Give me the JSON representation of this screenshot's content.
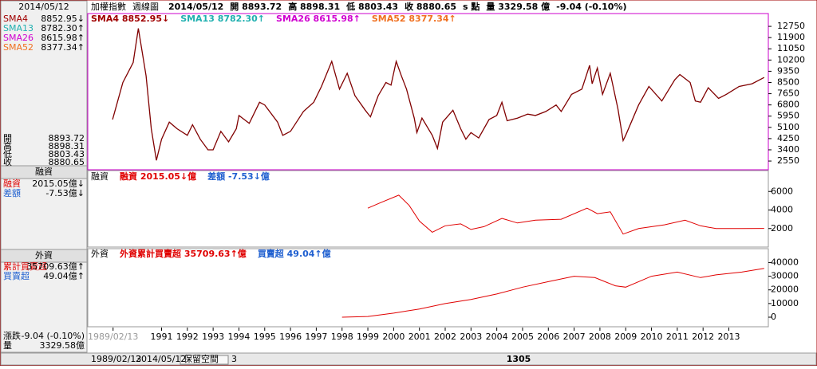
{
  "header": {
    "items": [
      "加權指數",
      "週線圖",
      "2014/05/12",
      "開 8893.72",
      "高 8898.31",
      "低 8803.43",
      "收 8880.65",
      "s 點",
      "量 3329.58 億",
      "-9.04 (-0.10%)"
    ]
  },
  "sidebar": {
    "date": "2014/05/12",
    "sma": [
      {
        "label": "SMA4",
        "value": "8852.95↓",
        "color": "#a00000"
      },
      {
        "label": "SMA13",
        "value": "8782.30↑",
        "color": "#20b0b0"
      },
      {
        "label": "SMA26",
        "value": "8615.98↑",
        "color": "#d000d0"
      },
      {
        "label": "SMA52",
        "value": "8377.34↑",
        "color": "#f07020"
      }
    ],
    "ohlc": [
      {
        "label": "開",
        "value": "8893.72"
      },
      {
        "label": "高",
        "value": "8898.31"
      },
      {
        "label": "低",
        "value": "8803.43"
      },
      {
        "label": "收",
        "value": "8880.65"
      }
    ],
    "margin_title": "融資",
    "margin": [
      {
        "label": "融資",
        "value": "2015.05億↓"
      },
      {
        "label": "差額",
        "value": "-7.53億↓"
      }
    ],
    "foreign_title": "外資",
    "foreign": [
      {
        "label": "累計買賣超",
        "value": "35709.63億↑"
      },
      {
        "label": "買賣超",
        "value": "49.04億↑"
      }
    ],
    "footer": [
      {
        "label": "漲跌",
        "value": "-9.04 (-0.10%)"
      },
      {
        "label": "量",
        "value": "3329.58億"
      }
    ]
  },
  "toolbar": {
    "start": "1989/02/13",
    "end": "2014/05/12",
    "button": "保留空間",
    "count": "3",
    "bars": "1305"
  },
  "chart_data": [
    {
      "type": "line",
      "legend": [
        {
          "text": "SMA4 8852.95↓",
          "color": "#a00000"
        },
        {
          "text": "SMA13 8782.30↑",
          "color": "#20b0b0"
        },
        {
          "text": "SMA26 8615.98↑",
          "color": "#d000d0"
        },
        {
          "text": "SMA52 8377.34↑",
          "color": "#f07020"
        }
      ],
      "xlim": [
        1988.2,
        2014.5
      ],
      "ylim": [
        1950,
        13600
      ],
      "yticks": [
        12750,
        11900,
        11050,
        10200,
        9350,
        8500,
        7650,
        6800,
        5950,
        5100,
        4250,
        3400,
        2550
      ],
      "x": [
        1989.1,
        1989.5,
        1989.9,
        1990.1,
        1990.4,
        1990.6,
        1990.8,
        1991.0,
        1991.3,
        1991.6,
        1992.0,
        1992.2,
        1992.5,
        1992.8,
        1993.0,
        1993.3,
        1993.6,
        1993.9,
        1994.0,
        1994.4,
        1994.8,
        1995.0,
        1995.5,
        1995.7,
        1996.0,
        1996.5,
        1996.9,
        1997.2,
        1997.6,
        1997.9,
        1998.2,
        1998.5,
        1998.9,
        1999.1,
        1999.4,
        1999.7,
        1999.9,
        2000.1,
        2000.3,
        2000.5,
        2000.8,
        2000.9,
        2001.1,
        2001.5,
        2001.7,
        2001.9,
        2002.3,
        2002.6,
        2002.8,
        2003.0,
        2003.3,
        2003.7,
        2004.0,
        2004.2,
        2004.4,
        2004.8,
        2005.2,
        2005.5,
        2005.9,
        2006.3,
        2006.5,
        2006.9,
        2007.3,
        2007.6,
        2007.7,
        2007.9,
        2008.1,
        2008.4,
        2008.7,
        2008.9,
        2009.0,
        2009.5,
        2009.9,
        2010.4,
        2010.9,
        2011.1,
        2011.5,
        2011.7,
        2011.9,
        2012.2,
        2012.6,
        2012.9,
        2013.4,
        2013.9,
        2014.37
      ],
      "series": [
        {
          "color": "#800000",
          "values": [
            5700,
            8500,
            10000,
            12600,
            9000,
            5000,
            2600,
            4200,
            5500,
            5000,
            4500,
            5300,
            4200,
            3400,
            3400,
            4800,
            4000,
            5000,
            6000,
            5400,
            7000,
            6800,
            5500,
            4500,
            4800,
            6300,
            7000,
            8200,
            10100,
            8000,
            9200,
            7500,
            6400,
            5900,
            7500,
            8500,
            8300,
            10100,
            9000,
            8000,
            5800,
            4700,
            5800,
            4500,
            3500,
            5500,
            6400,
            5000,
            4200,
            4700,
            4300,
            5700,
            6000,
            7000,
            5600,
            5800,
            6100,
            6000,
            6300,
            6800,
            6300,
            7600,
            8000,
            9800,
            8400,
            9600,
            7600,
            9200,
            6500,
            4100,
            4500,
            6800,
            8200,
            7100,
            8700,
            9100,
            8500,
            7100,
            7000,
            8100,
            7300,
            7600,
            8200,
            8400,
            8880.65
          ]
        }
      ]
    },
    {
      "type": "line",
      "legend": [
        {
          "text": "融資",
          "color": "#000000"
        },
        {
          "text": "融資 2015.05↓億",
          "color": "#e00000"
        },
        {
          "text": "差額 -7.53↓億",
          "color": "#2060d0"
        }
      ],
      "xlim": [
        1988.2,
        2014.5
      ],
      "ylim": [
        0,
        8000
      ],
      "yticks": [
        6000,
        4000,
        2000
      ],
      "x": [
        1999.0,
        1999.5,
        2000.2,
        2000.6,
        2001.0,
        2001.5,
        2002.0,
        2002.6,
        2003.0,
        2003.5,
        2004.2,
        2004.8,
        2005.5,
        2006.5,
        2007.5,
        2007.9,
        2008.4,
        2008.9,
        2009.5,
        2010.5,
        2011.3,
        2011.9,
        2012.5,
        2013.5,
        2014.37
      ],
      "series": [
        {
          "color": "#e00000",
          "values": [
            4200,
            4800,
            5600,
            4500,
            2800,
            1600,
            2300,
            2500,
            1900,
            2200,
            3100,
            2600,
            2900,
            3000,
            4200,
            3600,
            3800,
            1400,
            2000,
            2400,
            2900,
            2300,
            2000,
            2000,
            2015.05
          ]
        }
      ]
    },
    {
      "type": "line",
      "legend": [
        {
          "text": "外資",
          "color": "#000000"
        },
        {
          "text": "外資累計買賣超 35709.63↑億",
          "color": "#e00000"
        },
        {
          "text": "買賣超 49.04↑億",
          "color": "#2060d0"
        }
      ],
      "xlim": [
        1988.2,
        2014.5
      ],
      "ylim": [
        -7000,
        49000
      ],
      "yticks": [
        40000,
        30000,
        20000,
        10000,
        0
      ],
      "xticks": [
        {
          "value": 1989.12,
          "label": "1989/02/13"
        },
        1991,
        1992,
        1993,
        1994,
        1995,
        1996,
        1997,
        1998,
        1999,
        2000,
        2001,
        2002,
        2003,
        2004,
        2005,
        2006,
        2007,
        2008,
        2009,
        2010,
        2011,
        2012,
        2013
      ],
      "x": [
        1998.0,
        1999.0,
        2000.0,
        2001.0,
        2002.0,
        2003.0,
        2004.0,
        2005.0,
        2006.0,
        2007.0,
        2007.8,
        2008.6,
        2009.0,
        2010.0,
        2011.0,
        2011.9,
        2012.5,
        2013.5,
        2014.37
      ],
      "series": [
        {
          "color": "#e00000",
          "values": [
            0,
            500,
            3000,
            6000,
            10000,
            13000,
            17000,
            22000,
            26000,
            30000,
            29000,
            23000,
            22000,
            30000,
            33000,
            29000,
            31000,
            33000,
            35709.63
          ]
        }
      ]
    }
  ]
}
